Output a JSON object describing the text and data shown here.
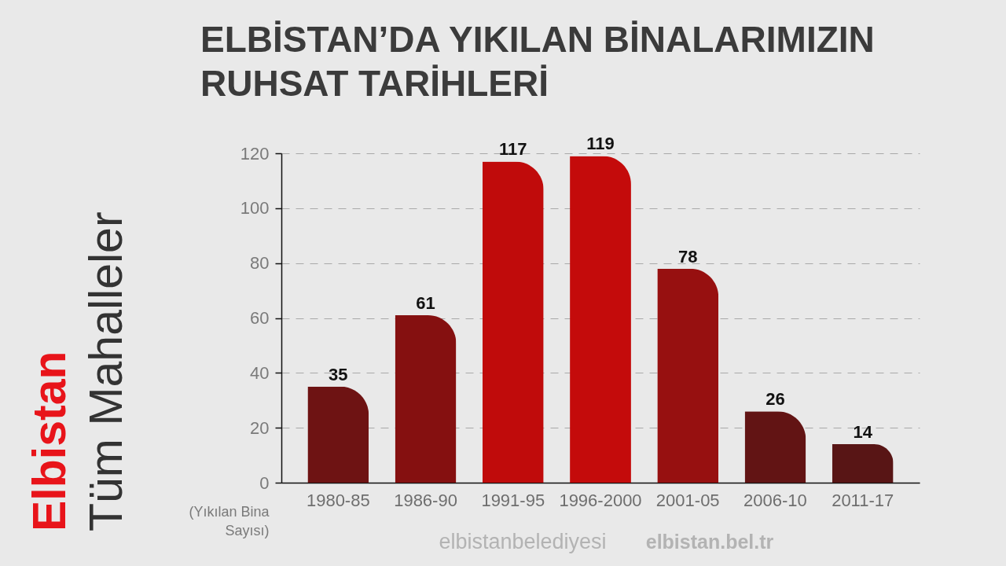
{
  "chart_data": {
    "type": "bar",
    "title": "ELBİSTAN’DA YIKILAN BİNALARIMIZIN\nRUHSAT TARİHLERİ",
    "ylabel": "(Yıkılan Bina\nSayısı)",
    "categories": [
      "1980-85",
      "1986-90",
      "1991-95",
      "1996-2000",
      "2001-05",
      "2006-10",
      "2011-17"
    ],
    "values": [
      35,
      61,
      117,
      119,
      78,
      26,
      14
    ],
    "colors": [
      "#6e1313",
      "#851010",
      "#c00b0b",
      "#c40b0b",
      "#971010",
      "#621414",
      "#581515"
    ],
    "ylim": [
      0,
      120
    ],
    "yticks": [
      0,
      20,
      40,
      60,
      80,
      100,
      120
    ],
    "grid": "y",
    "data_labels": true,
    "annotations": [
      "Elbistan",
      "Tüm Mahalleler",
      "elbistanbelediyesi",
      "elbistan.bel.tr"
    ]
  }
}
